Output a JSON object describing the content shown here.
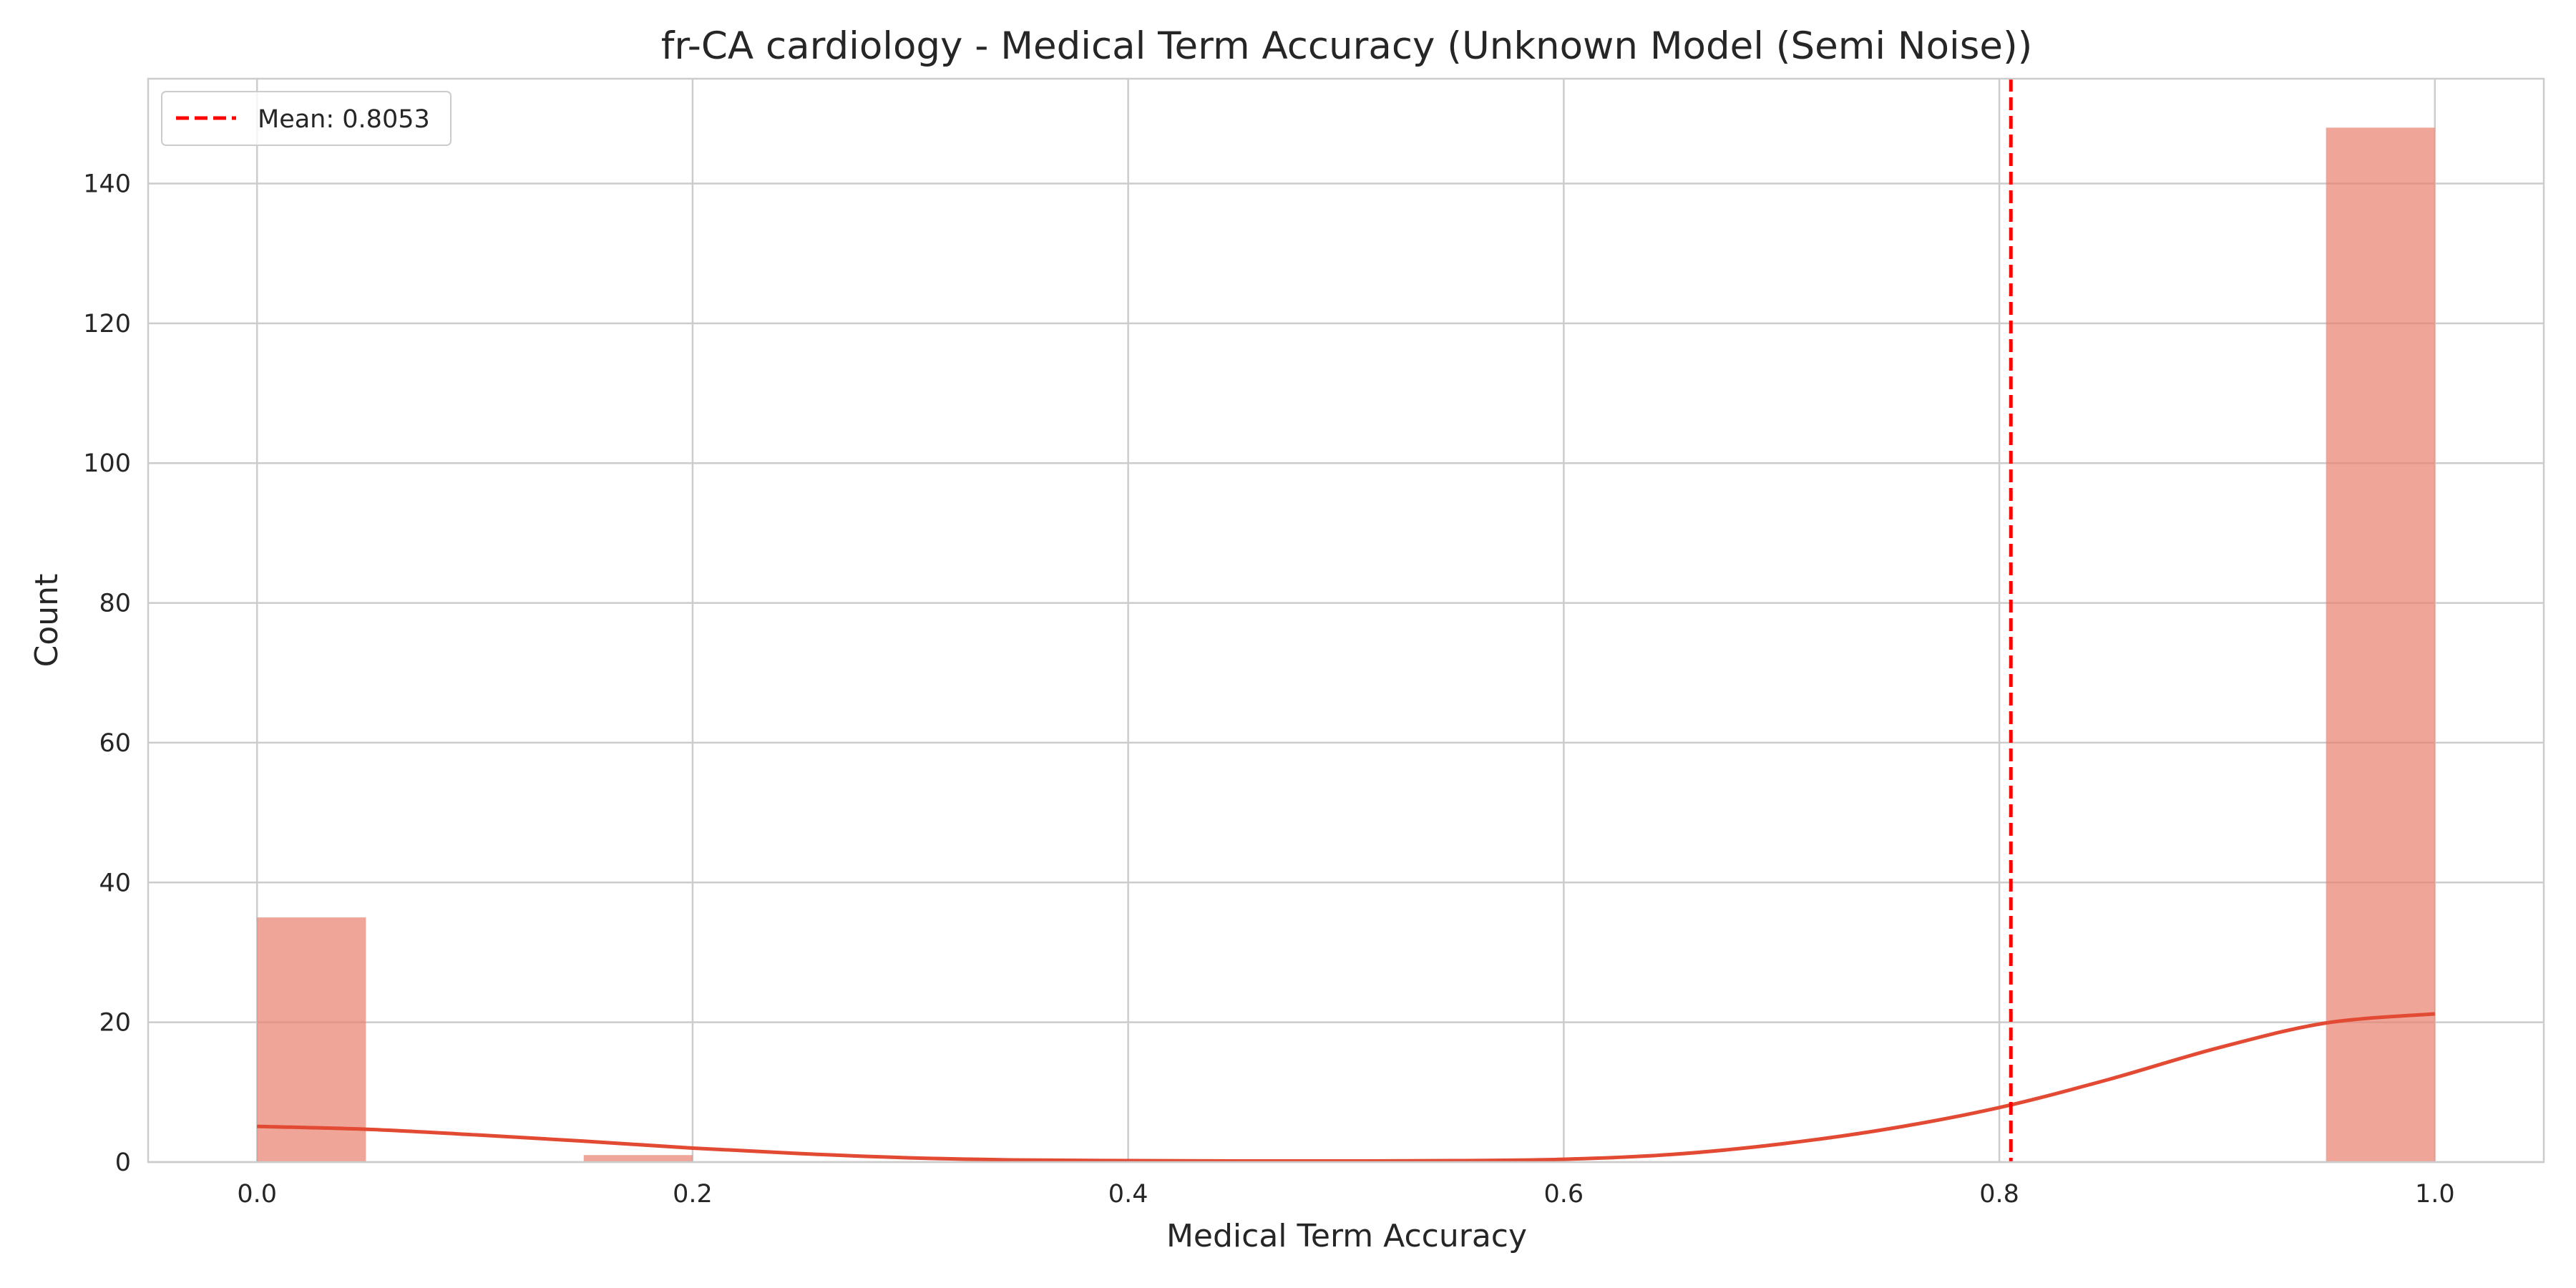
{
  "chart_data": {
    "type": "bar",
    "title": "fr-CA cardiology - Medical Term Accuracy (Unknown Model (Semi Noise))",
    "xlabel": "Medical Term Accuracy",
    "ylabel": "Count",
    "xlim": [
      -0.05,
      1.05
    ],
    "ylim": [
      0,
      155
    ],
    "grid": true,
    "legend_position": "top-left",
    "x_ticks": [
      0.0,
      0.2,
      0.4,
      0.6,
      0.8,
      1.0
    ],
    "x_tick_labels": [
      "0.0",
      "0.2",
      "0.4",
      "0.6",
      "0.8",
      "1.0"
    ],
    "y_ticks": [
      0,
      20,
      40,
      60,
      80,
      100,
      120,
      140
    ],
    "y_tick_labels": [
      "0",
      "20",
      "40",
      "60",
      "80",
      "100",
      "120",
      "140"
    ],
    "histogram": {
      "bin_edges": [
        0.0,
        0.05,
        0.1,
        0.15,
        0.2,
        0.25,
        0.3,
        0.35,
        0.4,
        0.45,
        0.5,
        0.55,
        0.6,
        0.65,
        0.7,
        0.75,
        0.8,
        0.85,
        0.9,
        0.95,
        1.0
      ],
      "counts": [
        35,
        0,
        0,
        1,
        0,
        0,
        0,
        0,
        0,
        0,
        0,
        0,
        0,
        0,
        0,
        0,
        0,
        0,
        0,
        148
      ],
      "color": "#e8806c"
    },
    "kde": {
      "x": [
        0.0,
        0.05,
        0.1,
        0.15,
        0.2,
        0.25,
        0.3,
        0.35,
        0.4,
        0.45,
        0.5,
        0.55,
        0.6,
        0.65,
        0.7,
        0.75,
        0.8,
        0.85,
        0.9,
        0.95,
        1.0
      ],
      "y": [
        5.1,
        4.7,
        3.9,
        3.0,
        2.0,
        1.2,
        0.6,
        0.3,
        0.2,
        0.15,
        0.15,
        0.2,
        0.4,
        1.1,
        2.6,
        4.8,
        7.8,
        11.8,
        16.3,
        19.9,
        21.2
      ],
      "color": "#e24a33"
    },
    "mean": {
      "value": 0.8053,
      "label": "Mean: 0.8053",
      "color": "#ff0000"
    }
  }
}
